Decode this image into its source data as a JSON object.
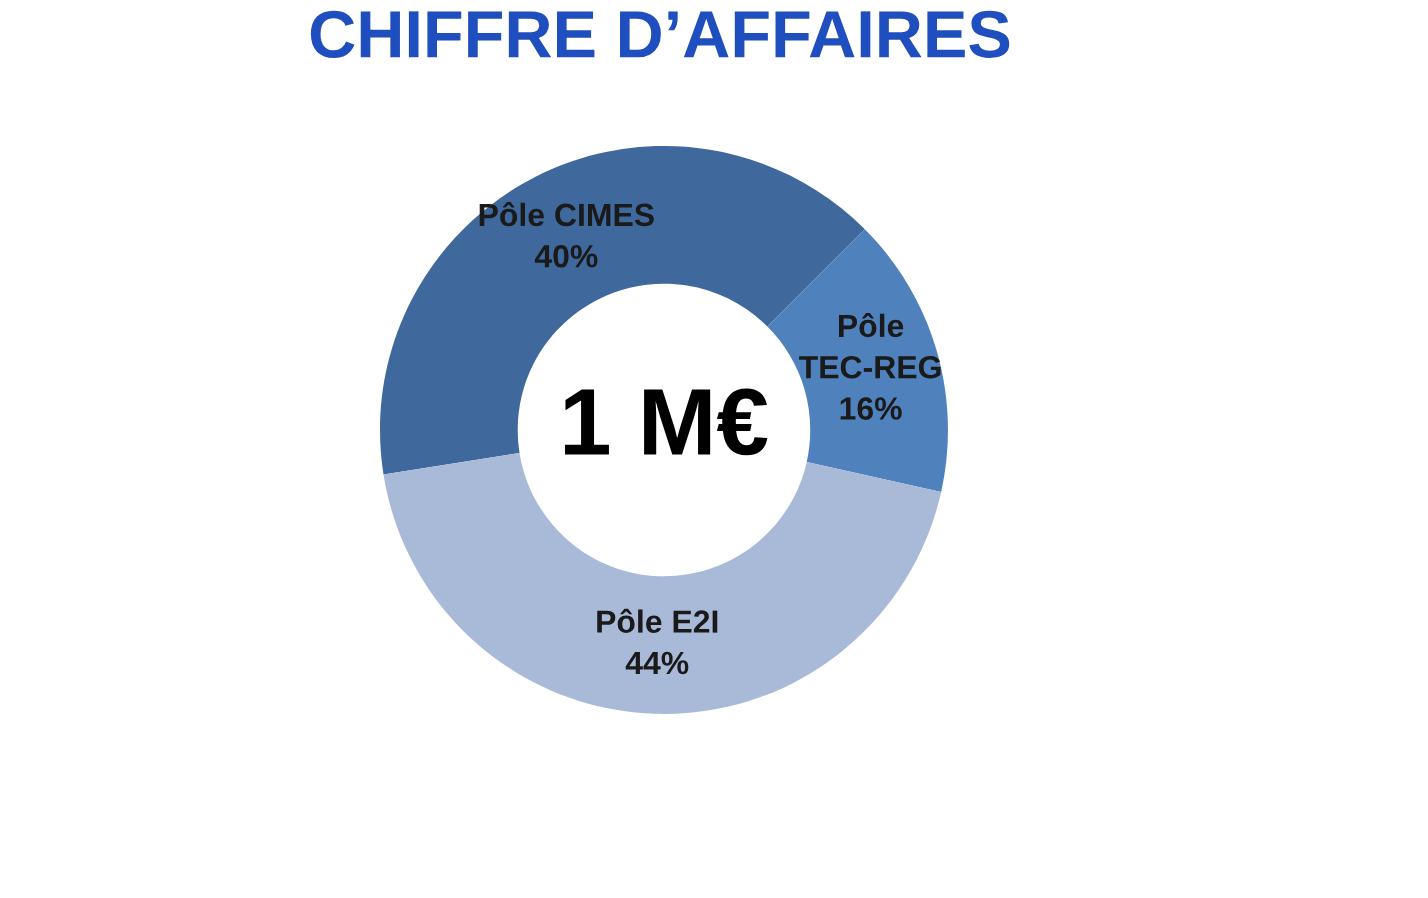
{
  "chart_data": {
    "type": "donut",
    "title": "CHIFFRE D’AFFAIRES",
    "categories": [
      "Pôle CIMES",
      "Pôle TEC-REG",
      "Pôle E2I"
    ],
    "values": [
      40,
      16,
      44
    ],
    "value_labels": [
      "40%",
      "16%",
      "44%"
    ],
    "colors": [
      "#3f689c",
      "#4f81bd",
      "#a9bad9"
    ],
    "annotations": [
      "1 M€"
    ],
    "legend": false
  }
}
